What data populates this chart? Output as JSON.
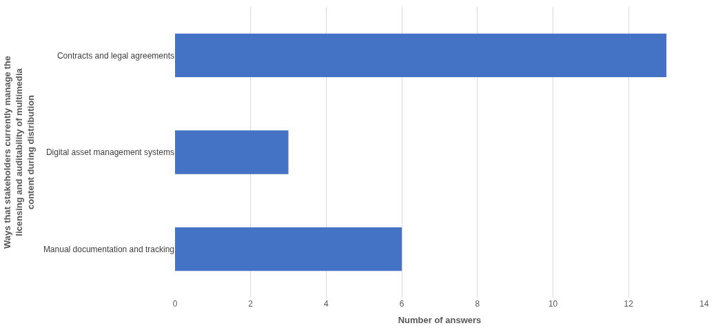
{
  "chart_data": {
    "type": "bar",
    "orientation": "horizontal",
    "categories": [
      "Contracts and legal agreements",
      "Digital asset management systems",
      "Manual documentation and tracking"
    ],
    "values": [
      13,
      3,
      6
    ],
    "color": "#4472c4",
    "xlabel": "Number of answers",
    "ylabel": "Ways that stakeholders currently manage the licensing and auditability of multimedia content during distribution",
    "xlim": [
      0,
      14
    ],
    "xticks": [
      0,
      2,
      4,
      6,
      8,
      10,
      12,
      14
    ],
    "grid": "x"
  }
}
